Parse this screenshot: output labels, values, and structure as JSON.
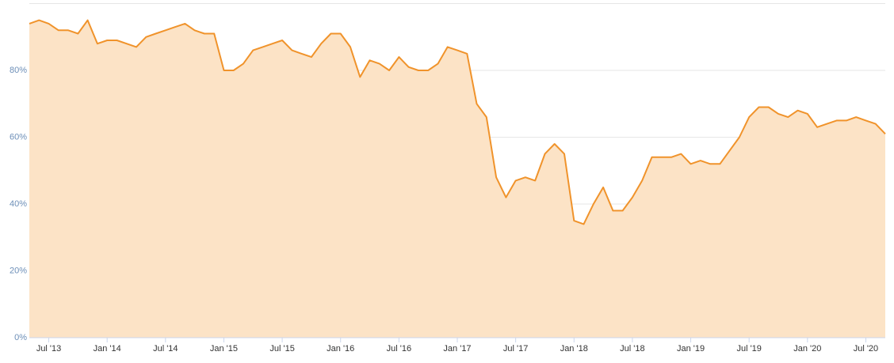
{
  "chart_data": {
    "type": "area",
    "categories": [
      null,
      null,
      "Jul '13",
      null,
      null,
      null,
      null,
      null,
      "Jan '14",
      null,
      null,
      null,
      null,
      null,
      "Jul '14",
      null,
      null,
      null,
      null,
      null,
      "Jan '15",
      null,
      null,
      null,
      null,
      null,
      "Jul '15",
      null,
      null,
      null,
      null,
      null,
      "Jan '16",
      null,
      null,
      null,
      null,
      null,
      "Jul '16",
      null,
      null,
      null,
      null,
      null,
      "Jan '17",
      null,
      null,
      null,
      null,
      null,
      "Jul '17",
      null,
      null,
      null,
      null,
      null,
      "Jan '18",
      null,
      null,
      null,
      null,
      null,
      "Jul '18",
      null,
      null,
      null,
      null,
      null,
      "Jan '19",
      null,
      null,
      null,
      null,
      null,
      "Jul '19",
      null,
      null,
      null,
      null,
      null,
      "Jan '20",
      null,
      null,
      null,
      null,
      null,
      "Jul '20",
      null,
      null
    ],
    "values": [
      94,
      95,
      94,
      92,
      92,
      91,
      95,
      88,
      89,
      89,
      88,
      87,
      90,
      91,
      92,
      93,
      94,
      92,
      91,
      91,
      80,
      80,
      82,
      86,
      87,
      88,
      89,
      86,
      85,
      84,
      88,
      91,
      91,
      87,
      78,
      83,
      82,
      80,
      84,
      81,
      80,
      80,
      82,
      87,
      86,
      85,
      70,
      66,
      48,
      42,
      47,
      48,
      47,
      55,
      58,
      55,
      35,
      34,
      40,
      45,
      38,
      38,
      42,
      47,
      54,
      54,
      54,
      55,
      52,
      53,
      52,
      52,
      56,
      60,
      66,
      69,
      69,
      67,
      66,
      68,
      67,
      63,
      64,
      65,
      65,
      66,
      65,
      64,
      61
    ],
    "color": "#f0932b",
    "fill": "#fce3c6",
    "ylim": [
      0,
      100
    ],
    "yticks": [
      {
        "value": 0,
        "label": "0%"
      },
      {
        "value": 20,
        "label": "20%"
      },
      {
        "value": 40,
        "label": "40%"
      },
      {
        "value": 60,
        "label": "60%"
      },
      {
        "value": 80,
        "label": "80%"
      }
    ],
    "grid": true
  }
}
